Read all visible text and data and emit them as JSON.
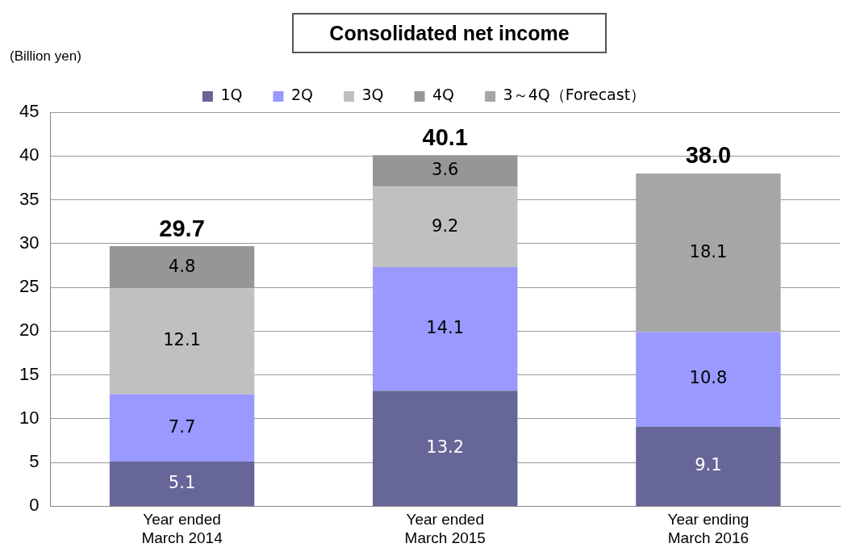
{
  "chart_data": {
    "type": "bar",
    "title": "Consolidated net income",
    "ylabel": "(Billion yen)",
    "stacked": true,
    "categories": [
      "Year ended\nMarch 2014",
      "Year ended\nMarch 2015",
      "Year ending\nMarch 2016"
    ],
    "series": [
      {
        "name": "1Q",
        "color": "#666699",
        "values": [
          5.1,
          13.2,
          9.1
        ]
      },
      {
        "name": "2Q",
        "color": "#9999ff",
        "values": [
          7.7,
          14.1,
          10.8
        ]
      },
      {
        "name": "3Q",
        "color": "#c0c0c0",
        "values": [
          12.1,
          9.2,
          null
        ]
      },
      {
        "name": "4Q",
        "color": "#969696",
        "values": [
          4.8,
          3.6,
          null
        ]
      },
      {
        "name": "3～4Q（Forecast）",
        "color": "#a6a6a6",
        "values": [
          null,
          null,
          18.1
        ]
      }
    ],
    "totals": [
      "29.7",
      "40.1",
      "38.0"
    ],
    "data_labels": true,
    "ylim": [
      0,
      45
    ],
    "yticks": [
      0,
      5,
      10,
      15,
      20,
      25,
      30,
      35,
      40,
      45
    ],
    "grid": "y",
    "legend": "top"
  }
}
